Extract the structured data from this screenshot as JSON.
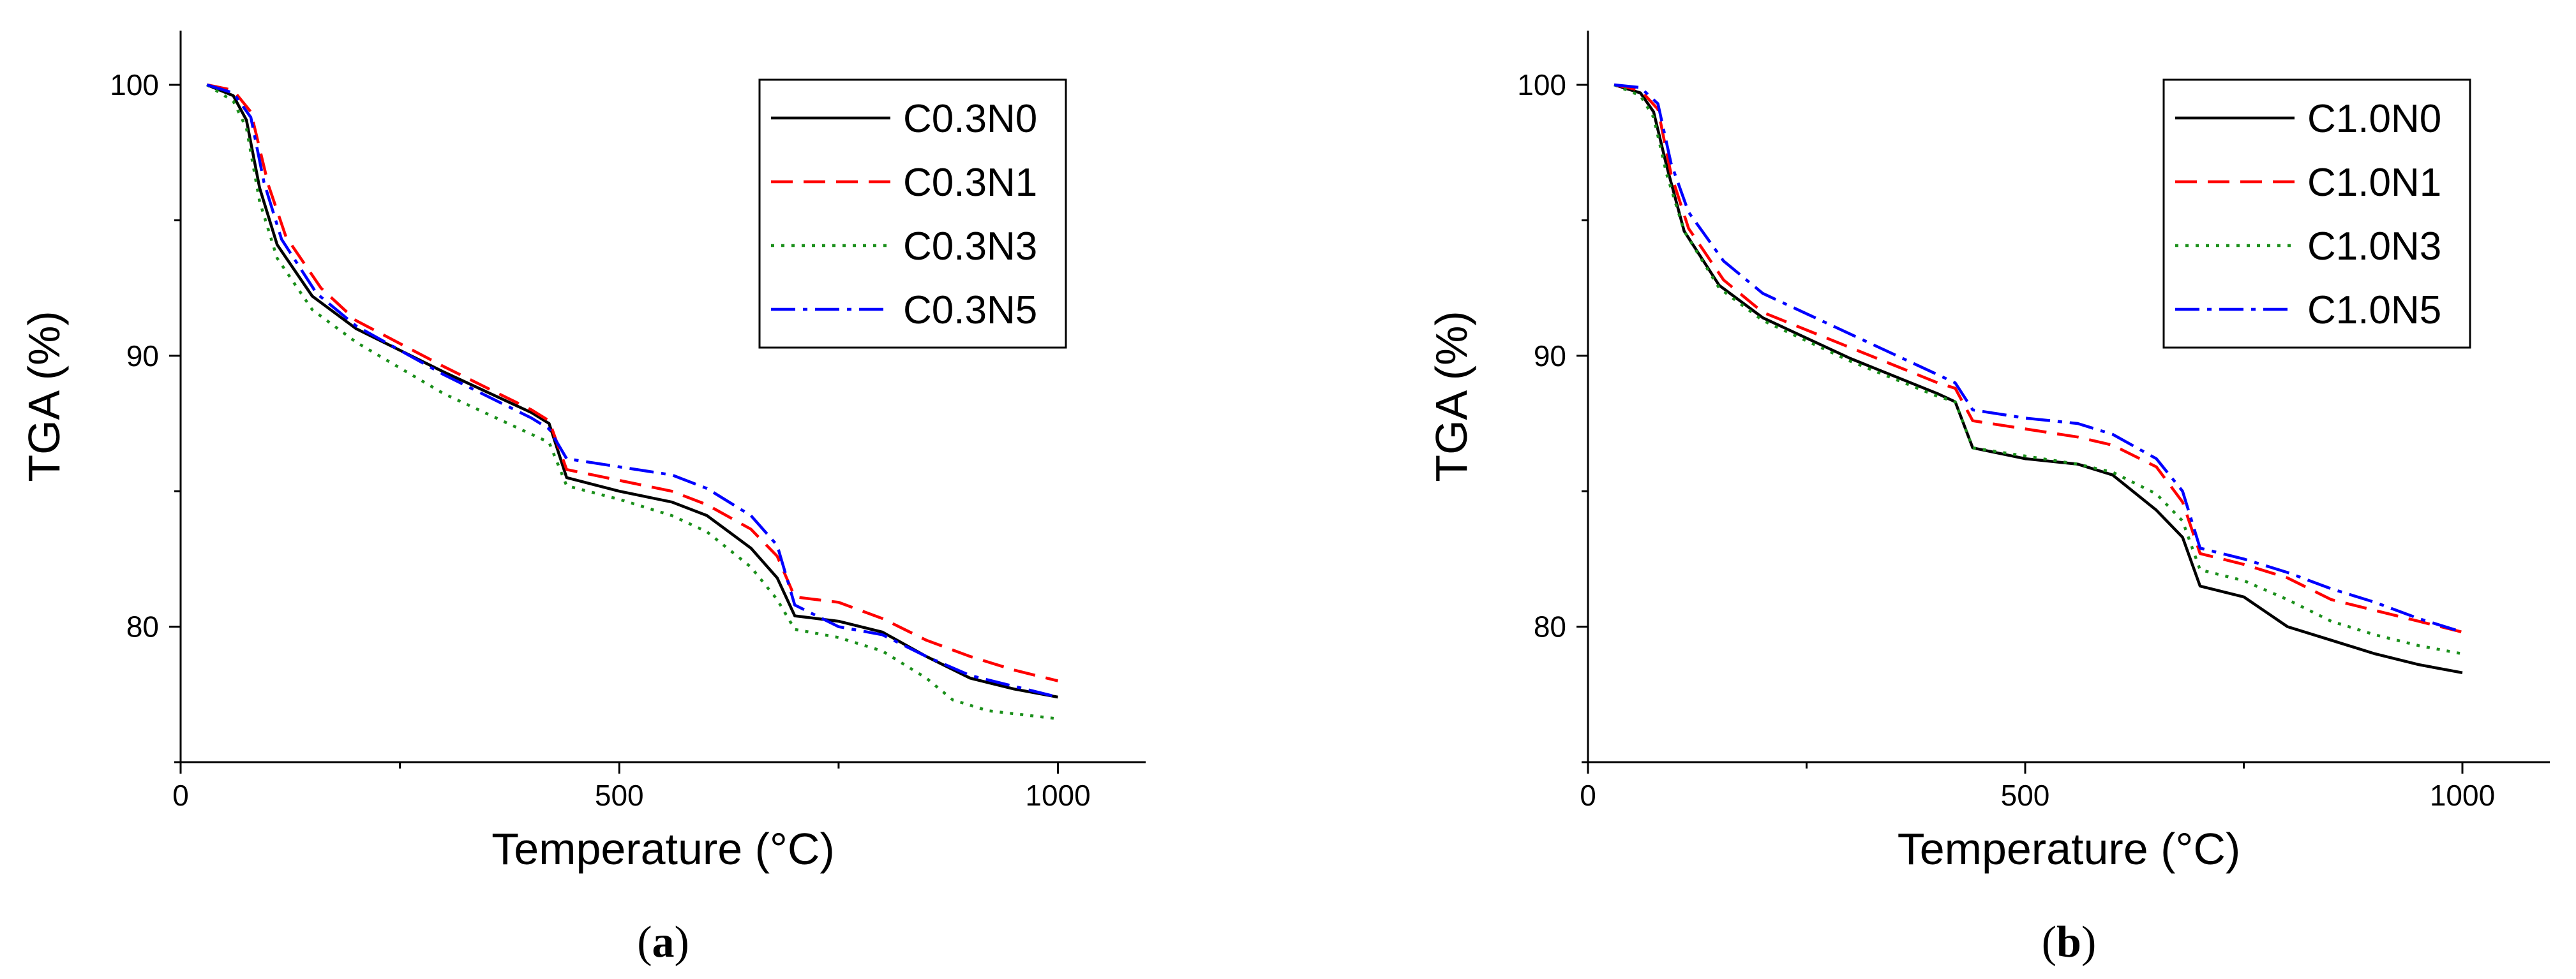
{
  "chart_data": [
    {
      "type": "line",
      "panel": "a",
      "caption_letter": "a",
      "xlabel": "Temperature (°C)",
      "ylabel": "TGA (%)",
      "xlim": [
        0,
        1100
      ],
      "ylim": [
        75,
        102
      ],
      "xticks": [
        0,
        500,
        1000
      ],
      "yticks": [
        80,
        90,
        100
      ],
      "grid": false,
      "legend_position": "top-right",
      "series": [
        {
          "name": "C0.3N0",
          "color": "#000000",
          "dash": "solid",
          "points": [
            [
              30,
              100
            ],
            [
              60,
              99.6
            ],
            [
              75,
              98.7
            ],
            [
              90,
              96.2
            ],
            [
              110,
              94.1
            ],
            [
              150,
              92.2
            ],
            [
              200,
              91.0
            ],
            [
              300,
              89.4
            ],
            [
              400,
              87.9
            ],
            [
              420,
              87.5
            ],
            [
              440,
              85.5
            ],
            [
              500,
              85.0
            ],
            [
              560,
              84.6
            ],
            [
              600,
              84.1
            ],
            [
              650,
              82.9
            ],
            [
              680,
              81.8
            ],
            [
              700,
              80.4
            ],
            [
              750,
              80.2
            ],
            [
              800,
              79.8
            ],
            [
              850,
              78.9
            ],
            [
              900,
              78.1
            ],
            [
              950,
              77.7
            ],
            [
              1000,
              77.4
            ]
          ]
        },
        {
          "name": "C0.3N1",
          "color": "#ff0000",
          "dash": "dashed",
          "points": [
            [
              30,
              100
            ],
            [
              60,
              99.8
            ],
            [
              80,
              99.0
            ],
            [
              100,
              96.3
            ],
            [
              120,
              94.4
            ],
            [
              160,
              92.5
            ],
            [
              200,
              91.3
            ],
            [
              300,
              89.6
            ],
            [
              400,
              88.0
            ],
            [
              420,
              87.6
            ],
            [
              440,
              85.8
            ],
            [
              500,
              85.4
            ],
            [
              560,
              85.0
            ],
            [
              600,
              84.5
            ],
            [
              650,
              83.6
            ],
            [
              680,
              82.6
            ],
            [
              700,
              81.1
            ],
            [
              750,
              80.9
            ],
            [
              800,
              80.3
            ],
            [
              850,
              79.5
            ],
            [
              900,
              78.9
            ],
            [
              950,
              78.4
            ],
            [
              1000,
              78.0
            ]
          ]
        },
        {
          "name": "C0.3N3",
          "color": "#1a8f1a",
          "dash": "dotted",
          "points": [
            [
              30,
              100
            ],
            [
              60,
              99.4
            ],
            [
              75,
              98.4
            ],
            [
              90,
              95.7
            ],
            [
              110,
              93.6
            ],
            [
              150,
              91.7
            ],
            [
              200,
              90.5
            ],
            [
              300,
              88.6
            ],
            [
              400,
              87.1
            ],
            [
              420,
              86.8
            ],
            [
              440,
              85.2
            ],
            [
              500,
              84.7
            ],
            [
              560,
              84.1
            ],
            [
              600,
              83.5
            ],
            [
              650,
              82.2
            ],
            [
              680,
              81.0
            ],
            [
              700,
              79.9
            ],
            [
              750,
              79.6
            ],
            [
              800,
              79.1
            ],
            [
              850,
              78.1
            ],
            [
              880,
              77.3
            ],
            [
              920,
              76.9
            ],
            [
              1000,
              76.6
            ]
          ]
        },
        {
          "name": "C0.3N5",
          "color": "#0000ff",
          "dash": "dashdot",
          "points": [
            [
              30,
              100
            ],
            [
              60,
              99.7
            ],
            [
              80,
              98.8
            ],
            [
              95,
              96.4
            ],
            [
              115,
              94.3
            ],
            [
              155,
              92.3
            ],
            [
              200,
              91.1
            ],
            [
              300,
              89.3
            ],
            [
              400,
              87.7
            ],
            [
              420,
              87.3
            ],
            [
              440,
              86.2
            ],
            [
              500,
              85.9
            ],
            [
              560,
              85.6
            ],
            [
              600,
              85.1
            ],
            [
              650,
              84.1
            ],
            [
              680,
              83.0
            ],
            [
              700,
              80.8
            ],
            [
              750,
              80.0
            ],
            [
              800,
              79.7
            ],
            [
              850,
              78.9
            ],
            [
              900,
              78.2
            ],
            [
              950,
              77.8
            ],
            [
              1000,
              77.4
            ]
          ]
        }
      ]
    },
    {
      "type": "line",
      "panel": "b",
      "caption_letter": "b",
      "xlabel": "Temperature (°C)",
      "ylabel": "TGA (%)",
      "xlim": [
        0,
        1100
      ],
      "ylim": [
        75,
        102
      ],
      "xticks": [
        0,
        500,
        1000
      ],
      "yticks": [
        80,
        90,
        100
      ],
      "grid": false,
      "legend_position": "top-right",
      "series": [
        {
          "name": "C1.0N0",
          "color": "#000000",
          "dash": "solid",
          "points": [
            [
              30,
              100
            ],
            [
              60,
              99.7
            ],
            [
              75,
              99.0
            ],
            [
              90,
              97.0
            ],
            [
              110,
              94.6
            ],
            [
              150,
              92.6
            ],
            [
              200,
              91.4
            ],
            [
              300,
              89.9
            ],
            [
              400,
              88.6
            ],
            [
              420,
              88.3
            ],
            [
              440,
              86.6
            ],
            [
              500,
              86.2
            ],
            [
              560,
              86.0
            ],
            [
              600,
              85.6
            ],
            [
              650,
              84.3
            ],
            [
              680,
              83.3
            ],
            [
              700,
              81.5
            ],
            [
              750,
              81.1
            ],
            [
              800,
              80.0
            ],
            [
              850,
              79.5
            ],
            [
              900,
              79.0
            ],
            [
              950,
              78.6
            ],
            [
              1000,
              78.3
            ]
          ]
        },
        {
          "name": "C1.0N1",
          "color": "#ff0000",
          "dash": "dashed",
          "points": [
            [
              30,
              100
            ],
            [
              60,
              99.8
            ],
            [
              80,
              99.1
            ],
            [
              95,
              96.7
            ],
            [
              115,
              94.7
            ],
            [
              155,
              92.8
            ],
            [
              200,
              91.6
            ],
            [
              300,
              90.3
            ],
            [
              400,
              89.0
            ],
            [
              420,
              88.8
            ],
            [
              440,
              87.6
            ],
            [
              500,
              87.3
            ],
            [
              560,
              87.0
            ],
            [
              600,
              86.7
            ],
            [
              650,
              85.9
            ],
            [
              680,
              84.6
            ],
            [
              700,
              82.7
            ],
            [
              750,
              82.3
            ],
            [
              800,
              81.8
            ],
            [
              850,
              81.0
            ],
            [
              900,
              80.6
            ],
            [
              950,
              80.2
            ],
            [
              1000,
              79.8
            ]
          ]
        },
        {
          "name": "C1.0N3",
          "color": "#1a8f1a",
          "dash": "dotted",
          "points": [
            [
              30,
              100
            ],
            [
              60,
              99.6
            ],
            [
              75,
              98.8
            ],
            [
              90,
              96.7
            ],
            [
              110,
              94.6
            ],
            [
              150,
              92.5
            ],
            [
              200,
              91.3
            ],
            [
              300,
              89.8
            ],
            [
              400,
              88.5
            ],
            [
              420,
              88.3
            ],
            [
              440,
              86.6
            ],
            [
              500,
              86.3
            ],
            [
              560,
              86.0
            ],
            [
              600,
              85.7
            ],
            [
              650,
              84.9
            ],
            [
              680,
              83.9
            ],
            [
              700,
              82.1
            ],
            [
              750,
              81.7
            ],
            [
              800,
              81.0
            ],
            [
              850,
              80.2
            ],
            [
              900,
              79.7
            ],
            [
              950,
              79.3
            ],
            [
              1000,
              79.0
            ]
          ]
        },
        {
          "name": "C1.0N5",
          "color": "#0000ff",
          "dash": "dashdot",
          "points": [
            [
              30,
              100
            ],
            [
              60,
              99.9
            ],
            [
              80,
              99.3
            ],
            [
              95,
              97.1
            ],
            [
              115,
              95.3
            ],
            [
              155,
              93.5
            ],
            [
              200,
              92.3
            ],
            [
              300,
              90.8
            ],
            [
              400,
              89.3
            ],
            [
              420,
              89.0
            ],
            [
              440,
              88.0
            ],
            [
              500,
              87.7
            ],
            [
              560,
              87.5
            ],
            [
              600,
              87.1
            ],
            [
              650,
              86.2
            ],
            [
              680,
              85.0
            ],
            [
              700,
              82.9
            ],
            [
              750,
              82.5
            ],
            [
              800,
              82.0
            ],
            [
              850,
              81.4
            ],
            [
              900,
              80.9
            ],
            [
              950,
              80.3
            ],
            [
              1000,
              79.8
            ]
          ]
        }
      ]
    }
  ]
}
